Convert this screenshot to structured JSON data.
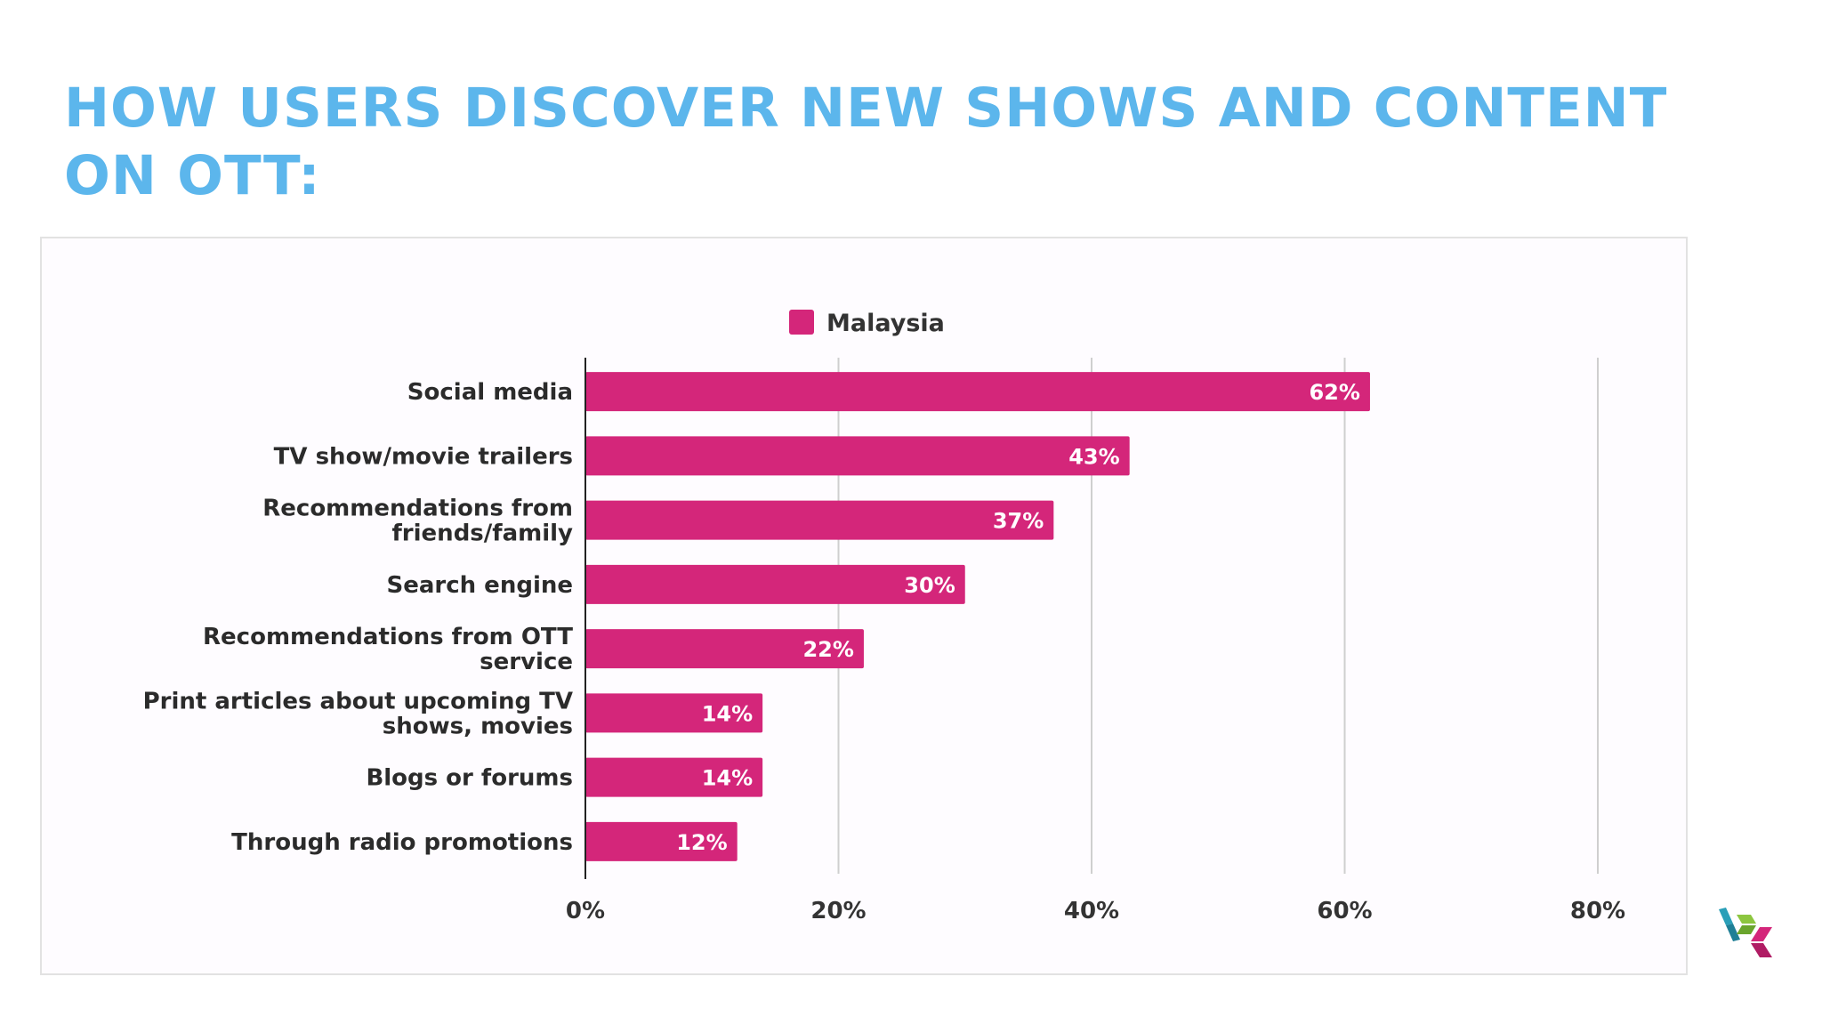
{
  "title": "HOW USERS DISCOVER NEW SHOWS AND CONTENT ON OTT:",
  "chart_data": {
    "type": "bar",
    "orientation": "horizontal",
    "title": "",
    "xlabel": "",
    "ylabel": "",
    "categories": [
      [
        "Social media"
      ],
      [
        "TV show/movie trailers"
      ],
      [
        "Recommendations from",
        "friends/family"
      ],
      [
        "Search engine"
      ],
      [
        "Recommendations from OTT",
        "service"
      ],
      [
        "Print articles about upcoming TV",
        "shows, movies"
      ],
      [
        "Blogs or forums"
      ],
      [
        "Through radio promotions"
      ]
    ],
    "series": [
      {
        "name": "Malaysia",
        "color": "#d4267a",
        "values": [
          62,
          43,
          37,
          30,
          22,
          14,
          14,
          12
        ],
        "labels": [
          "62%",
          "43%",
          "37%",
          "30%",
          "22%",
          "14%",
          "14%",
          "12%"
        ]
      }
    ],
    "xlim": [
      0,
      80
    ],
    "xticks": [
      0,
      20,
      40,
      60,
      80
    ],
    "xtick_labels": [
      "0%",
      "20%",
      "40%",
      "60%",
      "80%"
    ],
    "grid": true,
    "legend": "top-center"
  },
  "logo": {
    "name": "brand-logo-icon",
    "colors": [
      "#2a9fb8",
      "#8cc63f",
      "#d4267a"
    ]
  }
}
